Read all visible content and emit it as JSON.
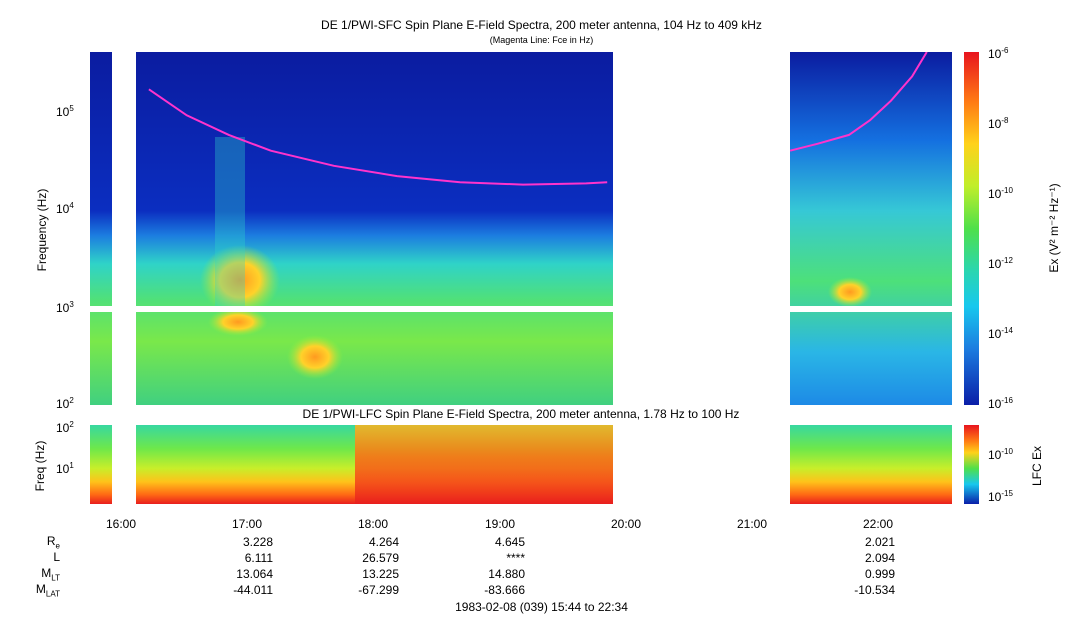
{
  "header": {
    "title": "DE 1/PWI-SFC  Spin Plane E-Field Spectra, 200 meter antenna, 104 Hz to 409 kHz",
    "subtitle": "(Magenta Line: Fce in Hz)"
  },
  "lfc": {
    "title": "DE 1/PWI-LFC  Spin Plane E-Field Spectra, 200 meter antenna, 1.78 Hz to 100 Hz"
  },
  "footer": {
    "time_range": "1983-02-08 (039) 15:44 to 22:34"
  },
  "colors": {
    "background_blue": "#0a1ea8",
    "fce_line": "#ff33cc"
  },
  "chart_data": [
    {
      "type": "heatmap",
      "title": "DE 1/PWI-SFC  Spin Plane E-Field Spectra, 200 meter antenna, 104 Hz to 409 kHz",
      "subtitle": "(Magenta Line: Fce in Hz)",
      "ylabel": "Frequency (Hz)",
      "yscale": "log",
      "ylim": [
        100,
        409000
      ],
      "y_ticks": [
        {
          "value": 100,
          "label": "10",
          "exp": "2"
        },
        {
          "value": 1000,
          "label": "10",
          "exp": "3"
        },
        {
          "value": 10000,
          "label": "10",
          "exp": "4"
        },
        {
          "value": 100000,
          "label": "10",
          "exp": "5"
        }
      ],
      "x_time_range": [
        "15:44",
        "22:34"
      ],
      "data_gaps": [
        [
          "15:55",
          "16:07"
        ],
        [
          "19:52",
          "21:17"
        ]
      ],
      "colorbar": {
        "label": "Ex (V² m⁻² Hz⁻¹)",
        "scale": "log",
        "range": [
          1e-16,
          1e-06
        ],
        "ticks": [
          {
            "label": "10",
            "exp": "-6"
          },
          {
            "label": "10",
            "exp": "-8"
          },
          {
            "label": "10",
            "exp": "-10"
          },
          {
            "label": "10",
            "exp": "-12"
          },
          {
            "label": "10",
            "exp": "-14"
          },
          {
            "label": "10",
            "exp": "-16"
          }
        ]
      },
      "fce_line": {
        "segments": [
          {
            "t": [
              "16:12",
              "16:30",
              "16:50",
              "17:10",
              "17:40",
              "18:10",
              "18:40",
              "19:10",
              "19:40",
              "19:50"
            ],
            "f": [
              170000,
              92000,
              58000,
              40000,
              28000,
              22000,
              19000,
              18000,
              18500,
              19000
            ]
          },
          {
            "t": [
              "21:17",
              "21:30",
              "21:45",
              "21:55",
              "22:05",
              "22:15",
              "22:22"
            ],
            "f": [
              40000,
              47000,
              58000,
              82000,
              130000,
              230000,
              409000
            ]
          }
        ]
      }
    },
    {
      "type": "heatmap",
      "title": "DE 1/PWI-LFC  Spin Plane E-Field Spectra, 200 meter antenna, 1.78 Hz to 100 Hz",
      "ylabel": "Freq (Hz)",
      "yscale": "log",
      "ylim": [
        1.78,
        100
      ],
      "y_ticks": [
        {
          "value": 10,
          "label": "10",
          "exp": "1"
        },
        {
          "value": 100,
          "label": "10",
          "exp": "2"
        }
      ],
      "data_gaps": [
        [
          "15:55",
          "16:07"
        ],
        [
          "19:52",
          "21:17"
        ]
      ],
      "colorbar": {
        "label": "LFC Ex",
        "scale": "log",
        "ticks": [
          {
            "label": "10",
            "exp": "-10"
          },
          {
            "label": "10",
            "exp": "-15"
          }
        ]
      }
    }
  ],
  "x_axis": {
    "ticks": [
      "16:00",
      "17:00",
      "18:00",
      "19:00",
      "20:00",
      "21:00",
      "22:00"
    ]
  },
  "ephemeris": {
    "rows": [
      {
        "label": "R",
        "sub": "e",
        "values": [
          "3.228",
          "4.264",
          "4.645",
          "",
          "",
          "2.021"
        ]
      },
      {
        "label": "L",
        "sub": "",
        "values": [
          "6.111",
          "26.579",
          "****",
          "",
          "",
          "2.094"
        ]
      },
      {
        "label": "M",
        "sub": "LT",
        "values": [
          "13.064",
          "13.225",
          "14.880",
          "",
          "",
          "0.999"
        ]
      },
      {
        "label": "M",
        "sub": "LAT",
        "values": [
          "-44.011",
          "-67.299",
          "-83.666",
          "",
          "",
          "-10.534"
        ]
      }
    ]
  }
}
